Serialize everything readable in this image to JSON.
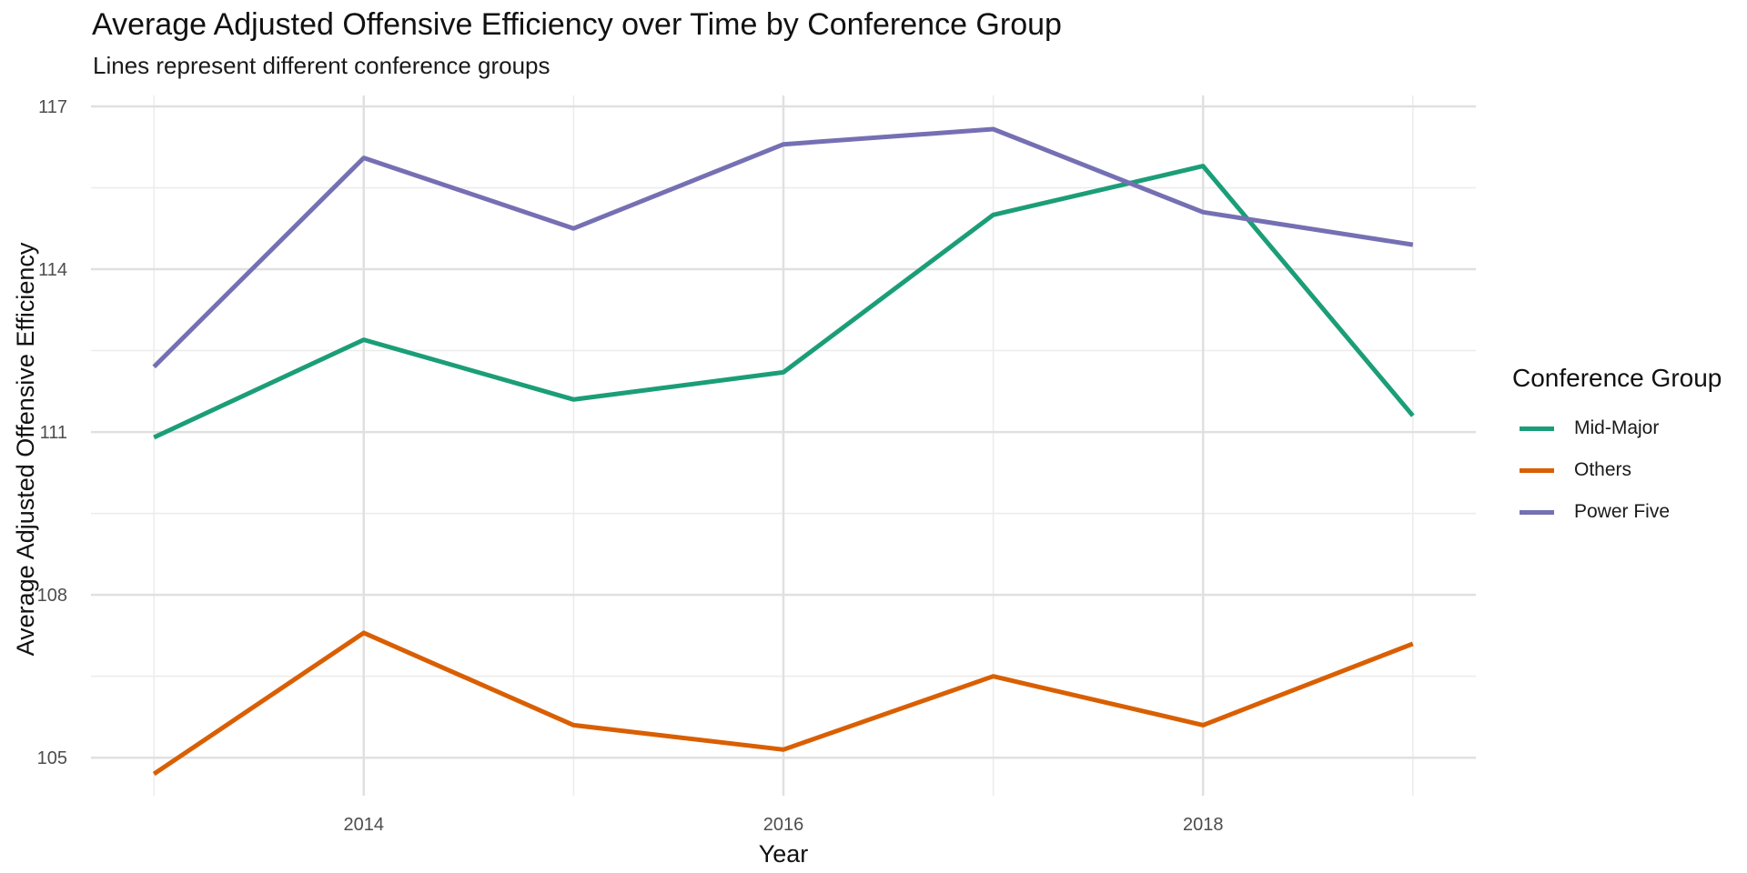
{
  "chart_data": {
    "type": "line",
    "title": "Average Adjusted Offensive Efficiency over Time by Conference Group",
    "subtitle": "Lines represent different conference groups",
    "xlabel": "Year",
    "ylabel": "Average Adjusted Offensive Efficiency",
    "x": [
      2013,
      2014,
      2015,
      2016,
      2017,
      2018,
      2019
    ],
    "x_ticks": [
      2014,
      2016,
      2018
    ],
    "y_ticks": [
      105,
      108,
      111,
      114,
      117
    ],
    "xlim": [
      2012.7,
      2019.3
    ],
    "ylim": [
      104.3,
      117.2
    ],
    "grid": true,
    "legend": {
      "title": "Conference Group",
      "position": "right"
    },
    "series": [
      {
        "name": "Mid-Major",
        "color": "#1b9e77",
        "values": [
          110.9,
          112.7,
          111.6,
          112.1,
          115.0,
          115.9,
          111.3
        ]
      },
      {
        "name": "Others",
        "color": "#d95f02",
        "values": [
          104.7,
          107.3,
          105.6,
          105.15,
          106.5,
          105.6,
          107.1
        ]
      },
      {
        "name": "Power Five",
        "color": "#7570b3",
        "values": [
          112.2,
          116.05,
          114.75,
          116.3,
          116.58,
          115.05,
          114.45
        ]
      }
    ]
  }
}
